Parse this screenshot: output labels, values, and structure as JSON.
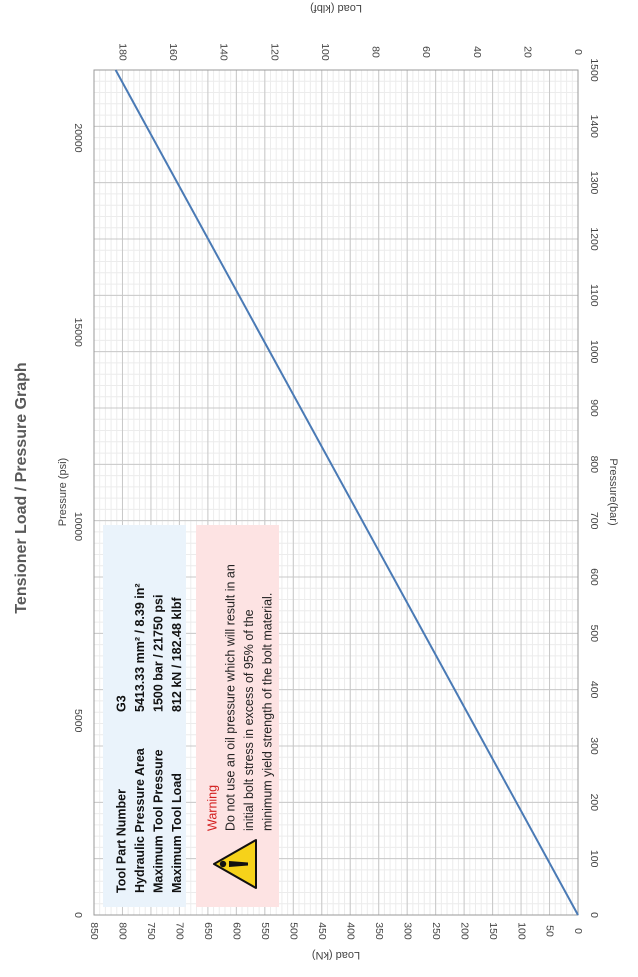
{
  "chart_data": {
    "type": "line",
    "title": "Tensioner Load / Pressure Graph",
    "orientation": "rotated-90-cw",
    "x_bottom": {
      "label": "Pressure(bar)",
      "range": [
        0,
        1500
      ],
      "ticks": [
        0,
        100,
        200,
        300,
        400,
        500,
        600,
        700,
        800,
        900,
        1000,
        1100,
        1200,
        1300,
        1400,
        1500
      ]
    },
    "x_top": {
      "label": "Pressure (psi)",
      "range": [
        0,
        21750
      ],
      "ticks": [
        0,
        5000,
        10000,
        15000,
        20000
      ]
    },
    "y_left": {
      "label": "Load (kN)",
      "range": [
        0,
        850
      ],
      "ticks": [
        0,
        50,
        100,
        150,
        200,
        250,
        300,
        350,
        400,
        450,
        500,
        550,
        600,
        650,
        700,
        750,
        800,
        850
      ]
    },
    "y_right": {
      "label": "Load (klbf)",
      "range": [
        0,
        191.09
      ],
      "ticks": [
        0,
        20,
        40,
        60,
        80,
        100,
        120,
        140,
        160,
        180
      ]
    },
    "series": [
      {
        "name": "",
        "color": "#4a7ab5",
        "x": [
          0,
          1500
        ],
        "y": [
          0,
          812
        ]
      }
    ],
    "grid": true
  },
  "info": {
    "rows": [
      {
        "label": "Tool Part Number",
        "value": "G3"
      },
      {
        "label": "Hydraulic Pressure Area",
        "value": "5413.33  mm² / 8.39  in²"
      },
      {
        "label": "Maximum Tool Pressure",
        "value": "1500  bar / 21750  psi"
      },
      {
        "label": "Maximum Tool Load",
        "value": "812  kN / 182.48  klbf"
      }
    ]
  },
  "warning": {
    "title": "Warning",
    "lines": [
      "Do not use an oil pressure which will result in an",
      "initial bolt stress in excess of 95% of the",
      "minimum yield strength of the bolt material."
    ],
    "icon": "warning-triangle-icon"
  },
  "colors": {
    "line": "#4a7ab5",
    "info_bg": "#eaf3fb",
    "warning_bg": "#fde3e3",
    "warning_icon": "#f6d21a"
  }
}
